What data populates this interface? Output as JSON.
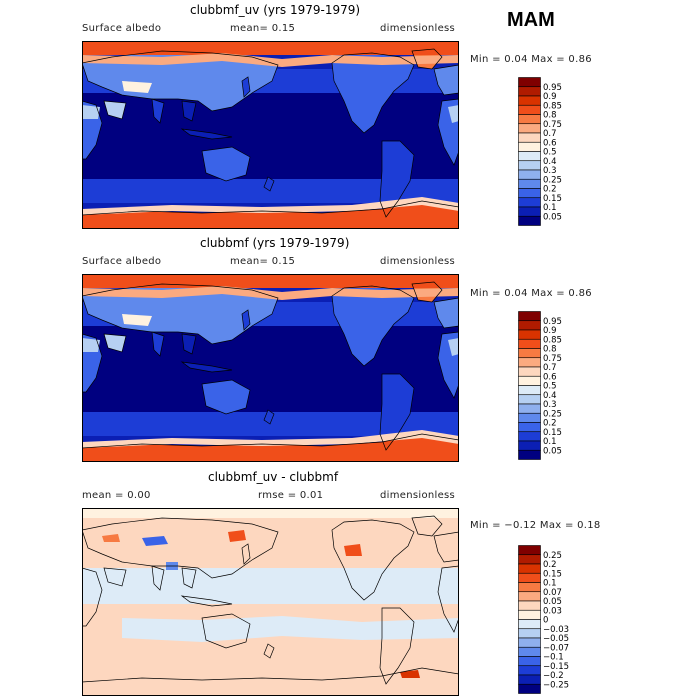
{
  "season": "MAM",
  "panels": [
    {
      "title": "clubbmf_uv (yrs 1979-1979)",
      "left_label": "Surface albedo",
      "mid_label": "mean=   0.15",
      "right_label": "dimensionless",
      "minmax": "Min =    0.04  Max =    0.86",
      "colorbar_labels": [
        "0.95",
        "0.9",
        "0.85",
        "0.8",
        "0.75",
        "0.7",
        "0.6",
        "0.5",
        "0.4",
        "0.3",
        "0.25",
        "0.2",
        "0.15",
        "0.1",
        "0.05"
      ],
      "colorbar_colors": [
        "#7f0000",
        "#b01b00",
        "#d93300",
        "#f04e1a",
        "#f77a42",
        "#fbaa80",
        "#fdd7bf",
        "#fff2e0",
        "#ddebf7",
        "#b6d0f2",
        "#8fb0ee",
        "#5f89ec",
        "#3a63e8",
        "#1d3dd6",
        "#0b1fb4",
        "#000080"
      ],
      "map_type": "albedo"
    },
    {
      "title": "clubbmf (yrs 1979-1979)",
      "left_label": "Surface albedo",
      "mid_label": "mean=   0.15",
      "right_label": "dimensionless",
      "minmax": "Min =    0.04  Max =    0.86",
      "colorbar_labels": [
        "0.95",
        "0.9",
        "0.85",
        "0.8",
        "0.75",
        "0.7",
        "0.6",
        "0.5",
        "0.4",
        "0.3",
        "0.25",
        "0.2",
        "0.15",
        "0.1",
        "0.05"
      ],
      "colorbar_colors": [
        "#7f0000",
        "#b01b00",
        "#d93300",
        "#f04e1a",
        "#f77a42",
        "#fbaa80",
        "#fdd7bf",
        "#fff2e0",
        "#ddebf7",
        "#b6d0f2",
        "#8fb0ee",
        "#5f89ec",
        "#3a63e8",
        "#1d3dd6",
        "#0b1fb4",
        "#000080"
      ],
      "map_type": "albedo"
    },
    {
      "title": "clubbmf_uv - clubbmf",
      "left_label": "mean =    0.00",
      "mid_label": "rmse =    0.01",
      "right_label": "dimensionless",
      "minmax": "Min =  −0.12  Max =    0.18",
      "colorbar_labels": [
        "0.25",
        "0.2",
        "0.15",
        "0.1",
        "0.07",
        "0.05",
        "0.03",
        "0",
        "−0.03",
        "−0.05",
        "−0.07",
        "−0.1",
        "−0.15",
        "−0.2",
        "−0.25"
      ],
      "colorbar_colors": [
        "#7f0000",
        "#b01b00",
        "#d93300",
        "#f04e1a",
        "#f77a42",
        "#fbaa80",
        "#fdd7bf",
        "#fff2e0",
        "#ddebf7",
        "#b6d0f2",
        "#8fb0ee",
        "#5f89ec",
        "#3a63e8",
        "#1d3dd6",
        "#0b1fb4",
        "#000080"
      ],
      "map_type": "diff"
    }
  ]
}
